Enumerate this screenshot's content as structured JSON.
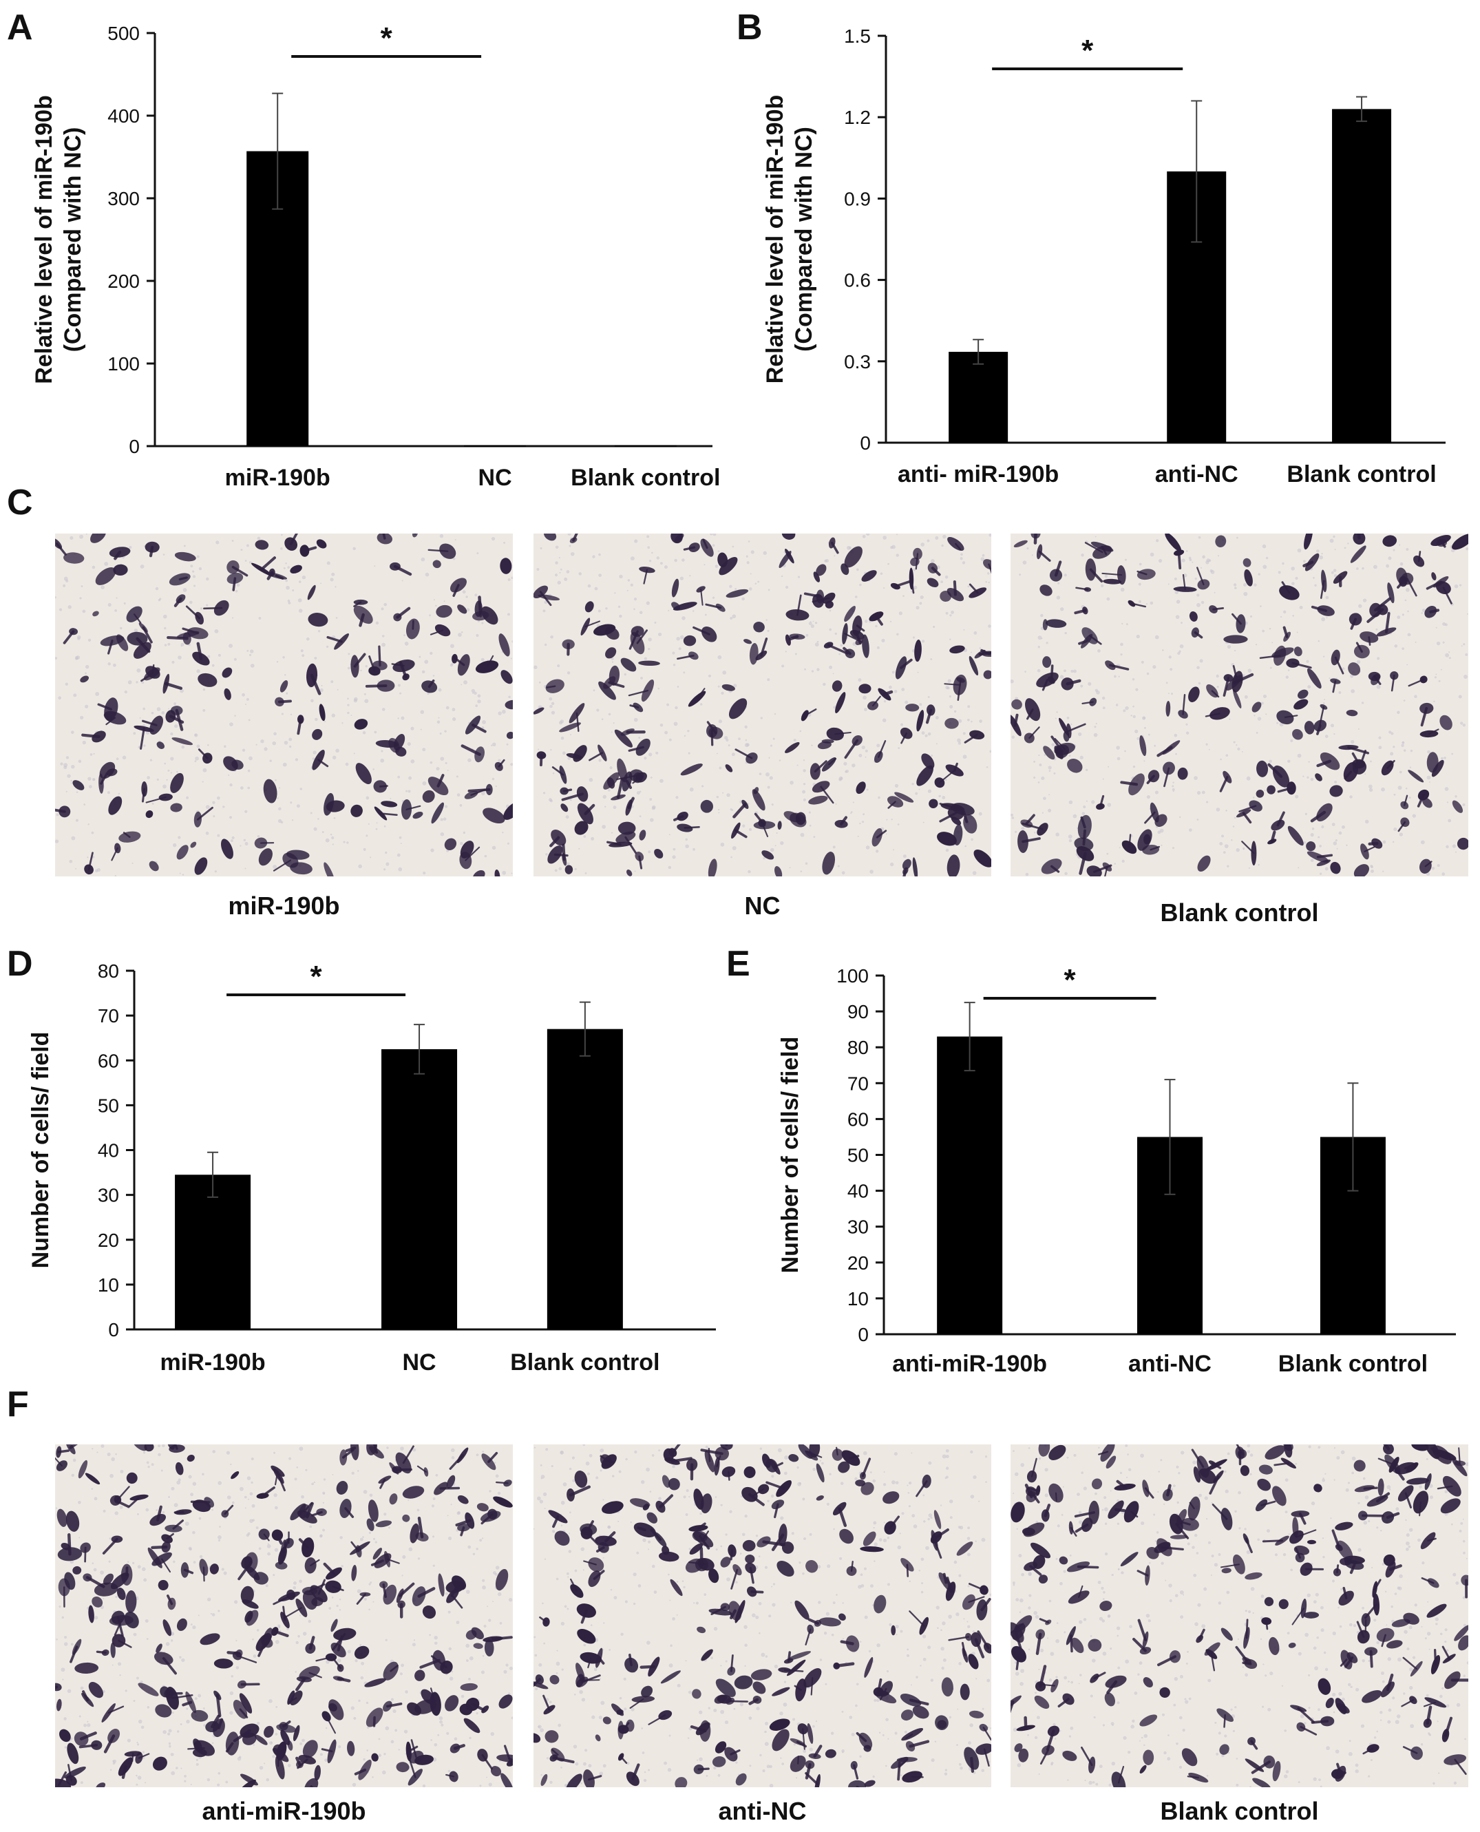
{
  "panels": {
    "A": "A",
    "B": "B",
    "C": "C",
    "D": "D",
    "E": "E",
    "F": "F"
  },
  "chart_data": [
    {
      "id": "A",
      "type": "bar",
      "categories": [
        "miR-190b",
        "NC",
        "Blank control"
      ],
      "values": [
        357,
        1,
        1
      ],
      "errors": [
        70,
        0,
        0
      ],
      "ylim": [
        0,
        500
      ],
      "yticks": [
        "0",
        "100",
        "200",
        "300",
        "400",
        "500"
      ],
      "ylabel_line1": "Relative level of miR-190b",
      "ylabel_line2": "(Compared with NC)",
      "significance": {
        "from": 0,
        "to": 1,
        "label": "*"
      },
      "bar_color": "#000000"
    },
    {
      "id": "B",
      "type": "bar",
      "categories": [
        "anti- miR-190b",
        "anti-NC",
        "Blank control"
      ],
      "values": [
        0.335,
        1.0,
        1.23
      ],
      "errors": [
        0.045,
        0.26,
        0.045
      ],
      "ylim": [
        0,
        1.5
      ],
      "yticks": [
        "0",
        "0.3",
        "0.6",
        "0.9",
        "1.2",
        "1.5"
      ],
      "ylabel_line1": "Relative level of miR-190b",
      "ylabel_line2": "(Compared with NC)",
      "significance": {
        "from": 0,
        "to": 1,
        "label": "*"
      },
      "bar_color": "#000000"
    },
    {
      "id": "D",
      "type": "bar",
      "categories": [
        "miR-190b",
        "NC",
        "Blank control"
      ],
      "values": [
        34.5,
        62.5,
        67
      ],
      "errors": [
        5,
        5.5,
        6
      ],
      "ylim": [
        0,
        80
      ],
      "yticks": [
        "0",
        "10",
        "20",
        "30",
        "40",
        "50",
        "60",
        "70",
        "80"
      ],
      "ylabel_line1": "Number of cells/ field",
      "ylabel_line2": "",
      "significance": {
        "from": 0,
        "to": 1,
        "label": "*"
      },
      "bar_color": "#000000"
    },
    {
      "id": "E",
      "type": "bar",
      "categories": [
        "anti-miR-190b",
        "anti-NC",
        "Blank control"
      ],
      "values": [
        83,
        55,
        55
      ],
      "errors": [
        9.5,
        16,
        15
      ],
      "ylim": [
        0,
        100
      ],
      "yticks": [
        "0",
        "10",
        "20",
        "30",
        "40",
        "50",
        "60",
        "70",
        "80",
        "90",
        "100"
      ],
      "ylabel_line1": "Number of cells/ field",
      "ylabel_line2": "",
      "significance": {
        "from": 0,
        "to": 1,
        "label": "*"
      },
      "bar_color": "#000000"
    }
  ],
  "micrographs": {
    "C": [
      "miR-190b",
      "NC",
      "Blank control"
    ],
    "F": [
      "anti-miR-190b",
      "anti-NC",
      "Blank control"
    ],
    "stain_color": "#2e2140",
    "background_color": "#ede9e2"
  }
}
